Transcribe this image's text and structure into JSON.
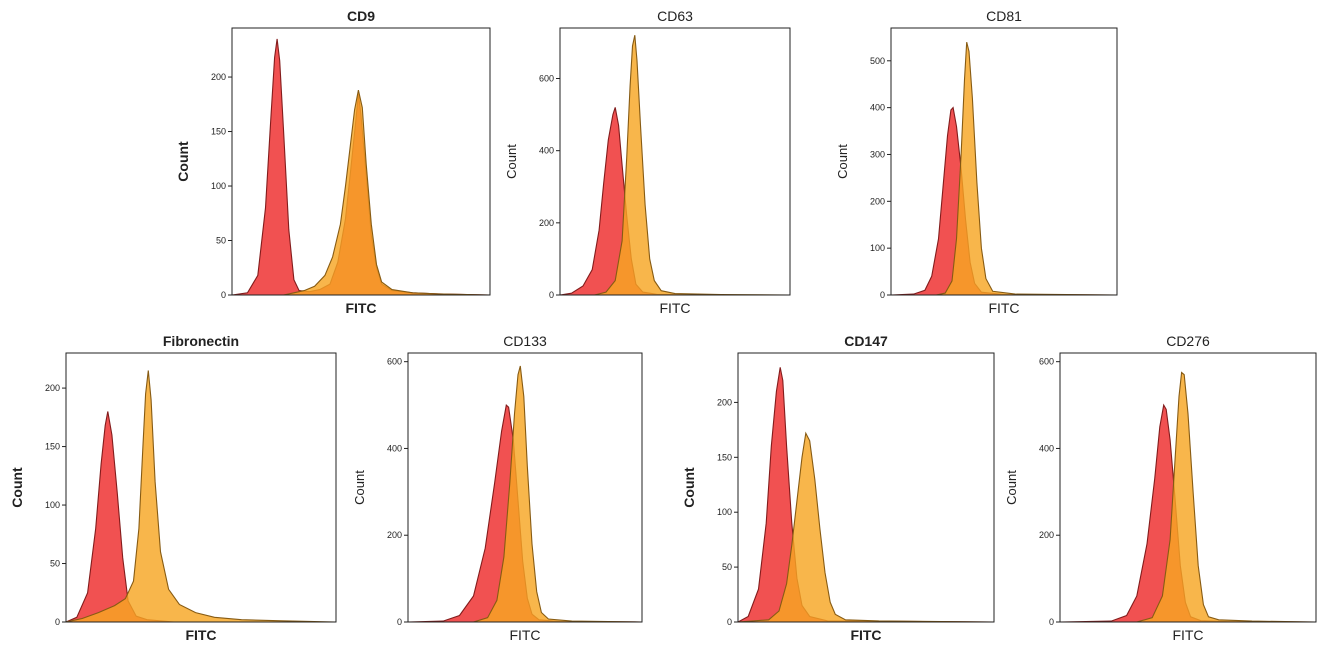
{
  "chart_data": [
    {
      "type": "area",
      "title": "CD9",
      "xlabel": "FITC",
      "ylabel": "Count",
      "yticks": [
        0,
        50,
        100,
        150,
        200
      ],
      "ylim": [
        0,
        245
      ],
      "xlim": [
        0,
        100
      ],
      "series": [
        {
          "color": "#ee3333",
          "values": [
            [
              0,
              0
            ],
            [
              6,
              2
            ],
            [
              10,
              18
            ],
            [
              13,
              80
            ],
            [
              15,
              160
            ],
            [
              16.5,
              218
            ],
            [
              17.5,
              235
            ],
            [
              18.5,
              215
            ],
            [
              20,
              150
            ],
            [
              22,
              60
            ],
            [
              24,
              14
            ],
            [
              26,
              4
            ],
            [
              30,
              3
            ],
            [
              34,
              5
            ],
            [
              38,
              10
            ],
            [
              41,
              30
            ],
            [
              44,
              70
            ],
            [
              46,
              115
            ],
            [
              48,
              160
            ],
            [
              49,
              185
            ],
            [
              50,
              165
            ],
            [
              52,
              110
            ],
            [
              54,
              55
            ],
            [
              56,
              25
            ],
            [
              58,
              10
            ],
            [
              62,
              4
            ],
            [
              70,
              2
            ],
            [
              80,
              1
            ],
            [
              100,
              0
            ]
          ]
        },
        {
          "color": "#f6a623",
          "values": [
            [
              0,
              0
            ],
            [
              20,
              0
            ],
            [
              24,
              2
            ],
            [
              28,
              4
            ],
            [
              32,
              8
            ],
            [
              36,
              18
            ],
            [
              39,
              35
            ],
            [
              42,
              65
            ],
            [
              44,
              100
            ],
            [
              46,
              140
            ],
            [
              47.5,
              170
            ],
            [
              49,
              188
            ],
            [
              50.5,
              172
            ],
            [
              52,
              120
            ],
            [
              54,
              65
            ],
            [
              56,
              28
            ],
            [
              58,
              12
            ],
            [
              62,
              5
            ],
            [
              70,
              2
            ],
            [
              80,
              1
            ],
            [
              100,
              0
            ]
          ]
        }
      ]
    },
    {
      "type": "area",
      "title": "CD63",
      "xlabel": "FITC",
      "ylabel": "Count",
      "yticks": [
        0,
        200,
        400,
        600
      ],
      "ylim": [
        0,
        740
      ],
      "xlim": [
        0,
        100
      ],
      "series": [
        {
          "color": "#ee3333",
          "values": [
            [
              0,
              0
            ],
            [
              5,
              5
            ],
            [
              10,
              25
            ],
            [
              14,
              70
            ],
            [
              17,
              180
            ],
            [
              19,
              310
            ],
            [
              21,
              430
            ],
            [
              23,
              500
            ],
            [
              24,
              520
            ],
            [
              25.5,
              470
            ],
            [
              27,
              360
            ],
            [
              29,
              220
            ],
            [
              31,
              100
            ],
            [
              33,
              30
            ],
            [
              36,
              8
            ],
            [
              42,
              2
            ],
            [
              60,
              0
            ],
            [
              100,
              0
            ]
          ]
        },
        {
          "color": "#f6a623",
          "values": [
            [
              0,
              0
            ],
            [
              15,
              0
            ],
            [
              20,
              8
            ],
            [
              24,
              40
            ],
            [
              27,
              150
            ],
            [
              29,
              380
            ],
            [
              30.5,
              580
            ],
            [
              31.5,
              690
            ],
            [
              32.5,
              720
            ],
            [
              33.5,
              650
            ],
            [
              35,
              470
            ],
            [
              37,
              250
            ],
            [
              39,
              100
            ],
            [
              41,
              40
            ],
            [
              44,
              12
            ],
            [
              50,
              4
            ],
            [
              70,
              1
            ],
            [
              100,
              0
            ]
          ]
        }
      ]
    },
    {
      "type": "area",
      "title": "CD81",
      "xlabel": "FITC",
      "ylabel": "Count",
      "yticks": [
        0,
        100,
        200,
        300,
        400,
        500
      ],
      "ylim": [
        0,
        570
      ],
      "xlim": [
        0,
        100
      ],
      "series": [
        {
          "color": "#ee3333",
          "values": [
            [
              0,
              0
            ],
            [
              10,
              2
            ],
            [
              15,
              10
            ],
            [
              18,
              40
            ],
            [
              21,
              120
            ],
            [
              23,
              230
            ],
            [
              25,
              340
            ],
            [
              26.5,
              395
            ],
            [
              27.5,
              400
            ],
            [
              29,
              360
            ],
            [
              31,
              270
            ],
            [
              33,
              160
            ],
            [
              35,
              70
            ],
            [
              37,
              25
            ],
            [
              40,
              6
            ],
            [
              50,
              1
            ],
            [
              100,
              0
            ]
          ]
        },
        {
          "color": "#f6a623",
          "values": [
            [
              0,
              0
            ],
            [
              20,
              0
            ],
            [
              24,
              4
            ],
            [
              27,
              30
            ],
            [
              29,
              120
            ],
            [
              31,
              300
            ],
            [
              32.5,
              460
            ],
            [
              33.5,
              540
            ],
            [
              34.5,
              520
            ],
            [
              36,
              420
            ],
            [
              38,
              240
            ],
            [
              40,
              100
            ],
            [
              42,
              35
            ],
            [
              45,
              8
            ],
            [
              55,
              2
            ],
            [
              100,
              0
            ]
          ]
        }
      ]
    },
    {
      "type": "area",
      "title": "Fibronectin",
      "xlabel": "FITC",
      "ylabel": "Count",
      "yticks": [
        0,
        50,
        100,
        150,
        200
      ],
      "ylim": [
        0,
        230
      ],
      "xlim": [
        0,
        100
      ],
      "series": [
        {
          "color": "#ee3333",
          "values": [
            [
              0,
              0
            ],
            [
              4,
              4
            ],
            [
              8,
              25
            ],
            [
              11,
              80
            ],
            [
              13,
              135
            ],
            [
              14.5,
              168
            ],
            [
              15.5,
              180
            ],
            [
              17,
              160
            ],
            [
              19,
              110
            ],
            [
              21,
              55
            ],
            [
              23,
              18
            ],
            [
              26,
              5
            ],
            [
              30,
              2
            ],
            [
              40,
              0
            ],
            [
              100,
              0
            ]
          ]
        },
        {
          "color": "#f6a623",
          "values": [
            [
              0,
              0
            ],
            [
              6,
              3
            ],
            [
              12,
              8
            ],
            [
              18,
              14
            ],
            [
              22,
              20
            ],
            [
              25,
              35
            ],
            [
              27,
              80
            ],
            [
              28.5,
              150
            ],
            [
              29.5,
              195
            ],
            [
              30.5,
              215
            ],
            [
              31.5,
              190
            ],
            [
              33,
              120
            ],
            [
              35,
              60
            ],
            [
              38,
              28
            ],
            [
              42,
              15
            ],
            [
              48,
              8
            ],
            [
              55,
              4
            ],
            [
              65,
              2
            ],
            [
              80,
              1
            ],
            [
              100,
              0
            ]
          ]
        }
      ]
    },
    {
      "type": "area",
      "title": "CD133",
      "xlabel": "FITC",
      "ylabel": "Count",
      "yticks": [
        0,
        200,
        400,
        600
      ],
      "ylim": [
        0,
        620
      ],
      "xlim": [
        0,
        100
      ],
      "series": [
        {
          "color": "#ee3333",
          "values": [
            [
              0,
              0
            ],
            [
              15,
              2
            ],
            [
              22,
              15
            ],
            [
              28,
              60
            ],
            [
              33,
              170
            ],
            [
              37,
              320
            ],
            [
              40,
              440
            ],
            [
              42,
              500
            ],
            [
              43,
              495
            ],
            [
              45,
              420
            ],
            [
              47,
              280
            ],
            [
              49,
              140
            ],
            [
              51,
              55
            ],
            [
              53,
              18
            ],
            [
              56,
              5
            ],
            [
              65,
              1
            ],
            [
              100,
              0
            ]
          ]
        },
        {
          "color": "#f6a623",
          "values": [
            [
              0,
              0
            ],
            [
              28,
              0
            ],
            [
              34,
              10
            ],
            [
              38,
              50
            ],
            [
              41,
              150
            ],
            [
              43.5,
              320
            ],
            [
              45.5,
              480
            ],
            [
              47,
              570
            ],
            [
              48,
              590
            ],
            [
              49.5,
              520
            ],
            [
              51,
              360
            ],
            [
              53,
              180
            ],
            [
              55,
              70
            ],
            [
              57,
              22
            ],
            [
              60,
              7
            ],
            [
              70,
              2
            ],
            [
              100,
              0
            ]
          ]
        }
      ]
    },
    {
      "type": "area",
      "title": "CD147",
      "xlabel": "FITC",
      "ylabel": "Count",
      "yticks": [
        0,
        50,
        100,
        150,
        200
      ],
      "ylim": [
        0,
        245
      ],
      "xlim": [
        0,
        100
      ],
      "series": [
        {
          "color": "#ee3333",
          "values": [
            [
              0,
              0
            ],
            [
              4,
              5
            ],
            [
              8,
              30
            ],
            [
              11,
              90
            ],
            [
              13,
              160
            ],
            [
              15,
              210
            ],
            [
              16.5,
              232
            ],
            [
              17.5,
              220
            ],
            [
              19,
              160
            ],
            [
              21,
              90
            ],
            [
              23,
              40
            ],
            [
              25,
              15
            ],
            [
              28,
              5
            ],
            [
              35,
              1
            ],
            [
              100,
              0
            ]
          ]
        },
        {
          "color": "#f6a623",
          "values": [
            [
              0,
              0
            ],
            [
              12,
              2
            ],
            [
              16,
              10
            ],
            [
              19,
              35
            ],
            [
              21,
              70
            ],
            [
              23,
              110
            ],
            [
              25,
              150
            ],
            [
              26.5,
              172
            ],
            [
              28,
              165
            ],
            [
              30,
              130
            ],
            [
              32,
              85
            ],
            [
              34,
              45
            ],
            [
              36,
              18
            ],
            [
              38,
              7
            ],
            [
              42,
              2
            ],
            [
              55,
              1
            ],
            [
              100,
              0
            ]
          ]
        }
      ]
    },
    {
      "type": "area",
      "title": "CD276",
      "xlabel": "FITC",
      "ylabel": "Count",
      "yticks": [
        0,
        200,
        400,
        600
      ],
      "ylim": [
        0,
        620
      ],
      "xlim": [
        0,
        100
      ],
      "series": [
        {
          "color": "#ee3333",
          "values": [
            [
              0,
              0
            ],
            [
              20,
              2
            ],
            [
              26,
              15
            ],
            [
              30,
              60
            ],
            [
              34,
              180
            ],
            [
              37,
              330
            ],
            [
              39,
              450
            ],
            [
              40.5,
              500
            ],
            [
              41.5,
              490
            ],
            [
              43,
              420
            ],
            [
              45,
              280
            ],
            [
              47,
              130
            ],
            [
              49,
              45
            ],
            [
              51,
              12
            ],
            [
              55,
              3
            ],
            [
              65,
              1
            ],
            [
              100,
              0
            ]
          ]
        },
        {
          "color": "#f6a623",
          "values": [
            [
              0,
              0
            ],
            [
              30,
              0
            ],
            [
              36,
              10
            ],
            [
              40,
              60
            ],
            [
              43,
              190
            ],
            [
              45,
              380
            ],
            [
              46.5,
              520
            ],
            [
              47.5,
              575
            ],
            [
              48.5,
              570
            ],
            [
              50,
              480
            ],
            [
              52,
              300
            ],
            [
              54,
              130
            ],
            [
              56,
              40
            ],
            [
              58,
              12
            ],
            [
              62,
              5
            ],
            [
              75,
              2
            ],
            [
              100,
              0
            ]
          ]
        }
      ]
    }
  ]
}
